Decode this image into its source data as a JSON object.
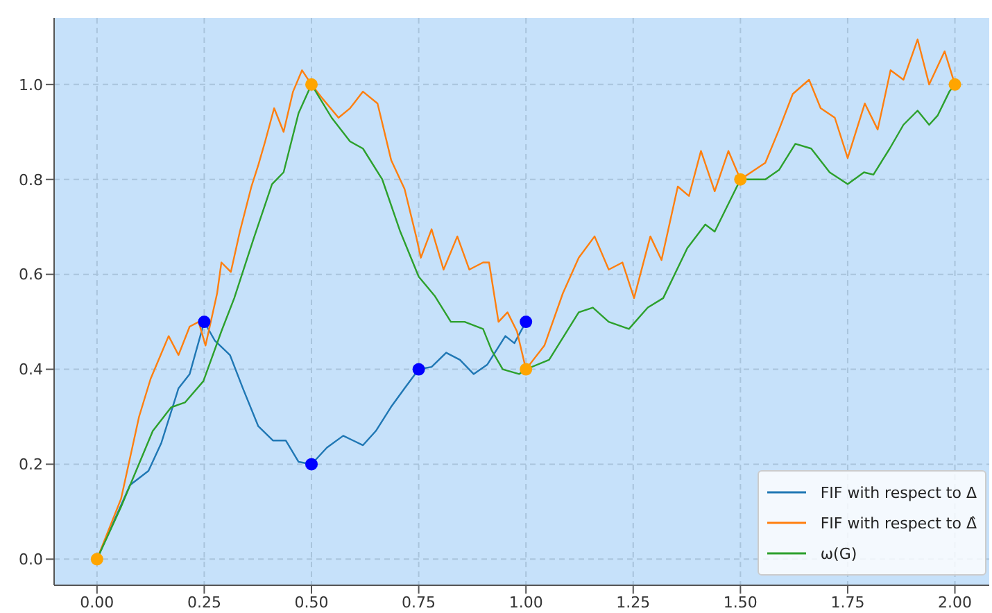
{
  "chart_data": {
    "type": "line",
    "xlim": [
      -0.1,
      2.08
    ],
    "ylim": [
      -0.055,
      1.14
    ],
    "xticks": [
      {
        "value": 0,
        "label": "0.00"
      },
      {
        "value": 0.25,
        "label": "0.25"
      },
      {
        "value": 0.5,
        "label": "0.50"
      },
      {
        "value": 0.75,
        "label": "0.75"
      },
      {
        "value": 1,
        "label": "1.00"
      },
      {
        "value": 1.25,
        "label": "1.25"
      },
      {
        "value": 1.5,
        "label": "1.50"
      },
      {
        "value": 1.75,
        "label": "1.75"
      },
      {
        "value": 2,
        "label": "2.00"
      }
    ],
    "yticks": [
      {
        "value": 0,
        "label": "0.0"
      },
      {
        "value": 0.2,
        "label": "0.2"
      },
      {
        "value": 0.4,
        "label": "0.4"
      },
      {
        "value": 0.6,
        "label": "0.6"
      },
      {
        "value": 0.8,
        "label": "0.8"
      },
      {
        "value": 1,
        "label": "1.0"
      }
    ],
    "grid": true,
    "legend": "bottom right",
    "series": [
      {
        "name": "FIF with respect to Δ",
        "color": "#1f77b4",
        "x": [
          0,
          0.077,
          0.12,
          0.15,
          0.19,
          0.216,
          0.25,
          0.275,
          0.31,
          0.34,
          0.376,
          0.41,
          0.44,
          0.47,
          0.5,
          0.536,
          0.574,
          0.62,
          0.65,
          0.685,
          0.717,
          0.75,
          0.78,
          0.814,
          0.846,
          0.878,
          0.91,
          0.952,
          0.973,
          1.0
        ],
        "values": [
          0,
          0.156,
          0.186,
          0.245,
          0.36,
          0.39,
          0.5,
          0.46,
          0.43,
          0.36,
          0.28,
          0.25,
          0.25,
          0.205,
          0.2,
          0.235,
          0.26,
          0.24,
          0.27,
          0.32,
          0.36,
          0.4,
          0.405,
          0.435,
          0.42,
          0.39,
          0.41,
          0.47,
          0.455,
          0.5
        ]
      },
      {
        "name": "FIF with respect to Δ̂",
        "color": "#ff7f0e",
        "x": [
          0,
          0.056,
          0.098,
          0.125,
          0.167,
          0.19,
          0.216,
          0.237,
          0.253,
          0.28,
          0.29,
          0.312,
          0.333,
          0.36,
          0.376,
          0.392,
          0.413,
          0.435,
          0.457,
          0.478,
          0.5,
          0.526,
          0.563,
          0.59,
          0.62,
          0.654,
          0.686,
          0.717,
          0.744,
          0.755,
          0.78,
          0.808,
          0.84,
          0.868,
          0.9,
          0.914,
          0.936,
          0.957,
          0.979,
          1.0,
          1.043,
          1.086,
          1.123,
          1.16,
          1.193,
          1.225,
          1.252,
          1.29,
          1.316,
          1.354,
          1.38,
          1.408,
          1.44,
          1.472,
          1.5,
          1.558,
          1.59,
          1.622,
          1.66,
          1.687,
          1.72,
          1.75,
          1.79,
          1.82,
          1.85,
          1.88,
          1.913,
          1.94,
          1.976,
          2.0
        ],
        "values": [
          0,
          0.127,
          0.3,
          0.38,
          0.47,
          0.43,
          0.49,
          0.5,
          0.45,
          0.56,
          0.625,
          0.605,
          0.69,
          0.785,
          0.83,
          0.88,
          0.95,
          0.9,
          0.985,
          1.03,
          1.0,
          0.97,
          0.93,
          0.95,
          0.985,
          0.96,
          0.84,
          0.78,
          0.68,
          0.635,
          0.695,
          0.61,
          0.68,
          0.61,
          0.625,
          0.625,
          0.5,
          0.52,
          0.48,
          0.4,
          0.45,
          0.56,
          0.635,
          0.68,
          0.61,
          0.625,
          0.55,
          0.68,
          0.63,
          0.785,
          0.765,
          0.86,
          0.775,
          0.86,
          0.8,
          0.835,
          0.905,
          0.98,
          1.01,
          0.95,
          0.93,
          0.845,
          0.96,
          0.905,
          1.03,
          1.01,
          1.095,
          1.0,
          1.07,
          1.0
        ]
      },
      {
        "name": "ω(G)",
        "color": "#2ca02c",
        "x": [
          0,
          0.056,
          0.13,
          0.173,
          0.205,
          0.248,
          0.29,
          0.32,
          0.365,
          0.408,
          0.435,
          0.47,
          0.5,
          0.547,
          0.59,
          0.62,
          0.665,
          0.707,
          0.75,
          0.787,
          0.825,
          0.857,
          0.9,
          0.92,
          0.946,
          0.984,
          1.0,
          1.054,
          1.123,
          1.156,
          1.193,
          1.24,
          1.284,
          1.32,
          1.376,
          1.418,
          1.44,
          1.5,
          1.558,
          1.59,
          1.628,
          1.665,
          1.708,
          1.75,
          1.788,
          1.81,
          1.848,
          1.88,
          1.913,
          1.94,
          1.96,
          1.987,
          2.0
        ],
        "values": [
          0,
          0.11,
          0.27,
          0.32,
          0.33,
          0.375,
          0.48,
          0.55,
          0.675,
          0.79,
          0.815,
          0.94,
          1.0,
          0.93,
          0.88,
          0.865,
          0.8,
          0.69,
          0.595,
          0.555,
          0.5,
          0.5,
          0.485,
          0.44,
          0.4,
          0.39,
          0.4,
          0.42,
          0.52,
          0.53,
          0.5,
          0.485,
          0.53,
          0.55,
          0.655,
          0.705,
          0.69,
          0.8,
          0.8,
          0.82,
          0.875,
          0.865,
          0.815,
          0.79,
          0.815,
          0.81,
          0.865,
          0.915,
          0.945,
          0.915,
          0.935,
          0.985,
          1.0
        ]
      },
      {
        "type": "scatter",
        "color": "#0000ff",
        "marker": "circle",
        "x": [
          0.25,
          0.5,
          0.75,
          1.0
        ],
        "values": [
          0.5,
          0.2,
          0.4,
          0.5
        ]
      },
      {
        "type": "scatter",
        "color": "#ffa500",
        "marker": "circle",
        "x": [
          0,
          0.5,
          1.0,
          1.5,
          2.0
        ],
        "values": [
          0,
          1,
          0.4,
          0.8,
          1
        ]
      }
    ]
  }
}
